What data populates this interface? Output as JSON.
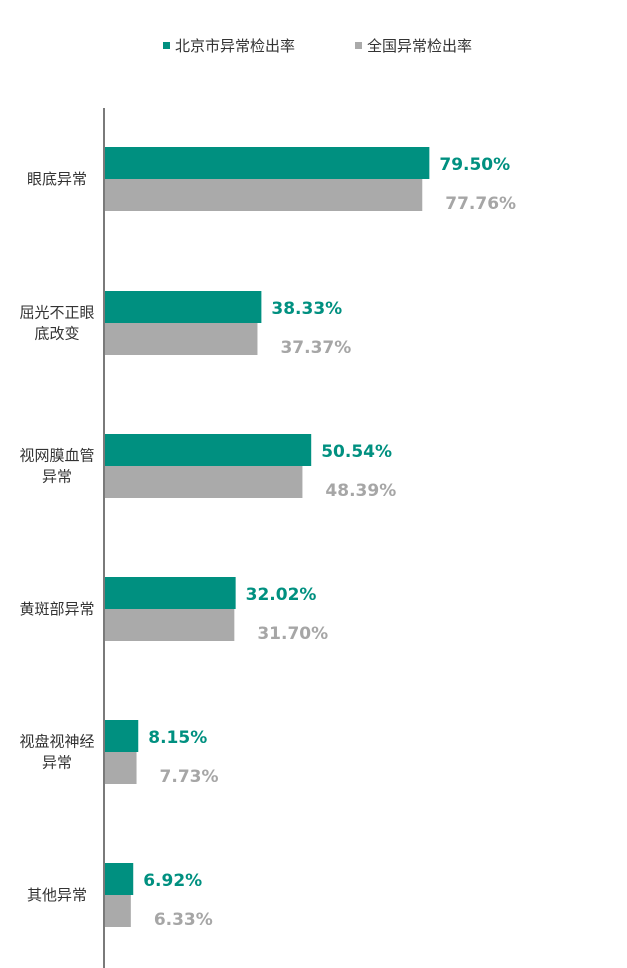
{
  "chart_data": {
    "type": "bar",
    "orientation": "horizontal",
    "categories": [
      "眼底异常",
      "屈光不正眼底改变",
      "视网膜血管异常",
      "黄斑部异常",
      "视盘视神经异常",
      "其他异常"
    ],
    "category_lines": [
      [
        "眼底异常"
      ],
      [
        "屈光不正眼",
        "底改变"
      ],
      [
        "视网膜血管",
        "异常"
      ],
      [
        "黄斑部异常"
      ],
      [
        "视盘视神经",
        "异常"
      ],
      [
        "其他异常"
      ]
    ],
    "series": [
      {
        "name": "北京市异常检出率",
        "color": "#009080",
        "values": [
          79.5,
          38.33,
          50.54,
          32.02,
          8.15,
          6.92
        ],
        "labels": [
          "79.50%",
          "38.33%",
          "50.54%",
          "32.02%",
          "8.15%",
          "6.92%"
        ]
      },
      {
        "name": "全国异常检出率",
        "color": "#aaaaaa",
        "values": [
          77.76,
          37.37,
          48.39,
          31.7,
          7.73,
          6.33
        ],
        "labels": [
          "77.76%",
          "37.37%",
          "48.39%",
          "31.70%",
          "7.73%",
          "6.33%"
        ]
      }
    ],
    "xlim": [
      0,
      100
    ],
    "grid": false,
    "legend_position": "top"
  }
}
